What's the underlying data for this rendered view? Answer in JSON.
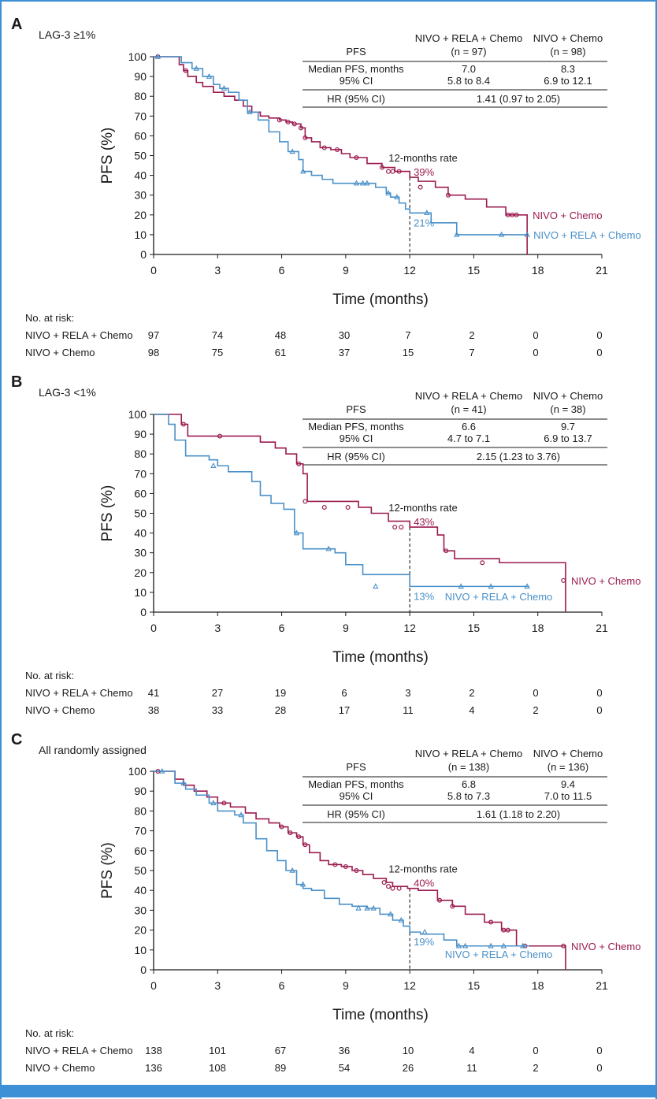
{
  "colors": {
    "red_arm": "#9b1a4f",
    "blue_arm": "#4a90c8",
    "frame": "#3d8fd6",
    "text": "#1a1a1a"
  },
  "chart_data": [
    {
      "type": "line",
      "panel": "A",
      "subtitle": "LAG-3 ≥1%",
      "xlabel": "Time (months)",
      "ylabel": "PFS (%)",
      "xlim": [
        0,
        21
      ],
      "ylim": [
        0,
        100
      ],
      "xticks": [
        "0",
        "3",
        "6",
        "9",
        "12",
        "15",
        "18",
        "21"
      ],
      "yticks": [
        "0",
        "10",
        "20",
        "30",
        "40",
        "50",
        "60",
        "70",
        "80",
        "90",
        "100"
      ],
      "annotation": "12-months rate",
      "rate_red": "39%",
      "rate_blue": "21%",
      "table": {
        "header": "PFS",
        "arm1_name": "NIVO + RELA + Chemo",
        "arm1_n": "(n = 97)",
        "arm2_name": "NIVO + Chemo",
        "arm2_n": "(n = 98)",
        "row1_label": "Median PFS, months",
        "row1_arm1": "7.0",
        "row1_arm2": "8.3",
        "row2_label": "95% CI",
        "row2_arm1": "5.8 to 8.4",
        "row2_arm2": "6.9 to 12.1",
        "hr_label": "HR (95% CI)",
        "hr_value": "1.41 (0.97 to 2.05)"
      },
      "risk": {
        "title": "No. at risk:",
        "arm1_label": "NIVO + RELA + Chemo",
        "arm1_values": [
          "97",
          "74",
          "48",
          "30",
          "7",
          "2",
          "0",
          "0"
        ],
        "arm2_label": "NIVO + Chemo",
        "arm2_values": [
          "98",
          "75",
          "61",
          "37",
          "15",
          "7",
          "0",
          "0"
        ]
      },
      "series": [
        {
          "name": "NIVO + Chemo",
          "label": "NIVO + Chemo",
          "color": "#9b1a4f",
          "x": [
            0,
            1.2,
            1.4,
            1.6,
            2.0,
            2.3,
            2.8,
            3.3,
            3.8,
            4.2,
            4.6,
            5.0,
            5.4,
            5.9,
            6.2,
            6.5,
            6.9,
            7.1,
            7.4,
            7.8,
            8.3,
            8.8,
            9.2,
            9.6,
            10.0,
            10.7,
            11.0,
            11.3,
            11.7,
            12.0,
            12.4,
            13.2,
            13.6,
            13.8,
            14.6,
            15.6,
            16.5,
            17.5,
            17.5
          ],
          "y": [
            100,
            96,
            93,
            90,
            87,
            85,
            82,
            80,
            78,
            75,
            72,
            70,
            69,
            68,
            67,
            66,
            64,
            59,
            57,
            54,
            53,
            51,
            49,
            49,
            46,
            44,
            44,
            42,
            42,
            39,
            37,
            34,
            34,
            30,
            28,
            24,
            20,
            20,
            0
          ],
          "censor_x": [
            0.2,
            1.5,
            5.9,
            6.3,
            6.6,
            6.9,
            7.1,
            8.0,
            8.6,
            9.5,
            10.7,
            11.0,
            11.2,
            11.5,
            12.5,
            13.8,
            16.6,
            16.8,
            17.0
          ],
          "censor_y": [
            100,
            93,
            68,
            67,
            66,
            64,
            59,
            54,
            53,
            49,
            44,
            42,
            42,
            42,
            34,
            30,
            20,
            20,
            20
          ]
        },
        {
          "name": "NIVO + RELA + Chemo",
          "label": "NIVO + RELA + Chemo",
          "color": "#4a90c8",
          "x": [
            0,
            1.3,
            1.8,
            2.3,
            2.8,
            3.1,
            3.5,
            4.0,
            4.4,
            4.9,
            5.4,
            5.9,
            6.3,
            6.8,
            7.0,
            7.4,
            7.9,
            8.4,
            8.9,
            9.4,
            10.4,
            10.9,
            11.1,
            11.5,
            11.8,
            12.0,
            12.2,
            13.0,
            14.2,
            15.0,
            16.0,
            17.5
          ],
          "y": [
            100,
            97,
            94,
            90,
            86,
            84,
            82,
            78,
            72,
            68,
            62,
            57,
            52,
            48,
            42,
            40,
            38,
            36,
            36,
            36,
            34,
            31,
            29,
            26,
            23,
            21,
            21,
            16,
            10,
            10,
            10,
            10
          ],
          "censor_x": [
            0.2,
            2.0,
            2.6,
            3.3,
            4.5,
            6.5,
            7.0,
            9.5,
            9.8,
            10.0,
            11.0,
            11.4,
            12.8,
            14.2,
            16.3,
            17.5
          ],
          "censor_y": [
            100,
            94,
            90,
            84,
            72,
            52,
            42,
            36,
            36,
            36,
            31,
            29,
            21,
            10,
            10,
            10
          ]
        }
      ]
    },
    {
      "type": "line",
      "panel": "B",
      "subtitle": "LAG-3 <1%",
      "xlabel": "Time (months)",
      "ylabel": "PFS (%)",
      "xlim": [
        0,
        21
      ],
      "ylim": [
        0,
        100
      ],
      "xticks": [
        "0",
        "3",
        "6",
        "9",
        "12",
        "15",
        "18",
        "21"
      ],
      "yticks": [
        "0",
        "10",
        "20",
        "30",
        "40",
        "50",
        "60",
        "70",
        "80",
        "90",
        "100"
      ],
      "annotation": "12-months rate",
      "rate_red": "43%",
      "rate_blue": "13%",
      "table": {
        "header": "PFS",
        "arm1_name": "NIVO + RELA + Chemo",
        "arm1_n": "(n = 41)",
        "arm2_name": "NIVO + Chemo",
        "arm2_n": "(n = 38)",
        "row1_label": "Median PFS, months",
        "row1_arm1": "6.6",
        "row1_arm2": "9.7",
        "row2_label": "95% CI",
        "row2_arm1": "4.7 to 7.1",
        "row2_arm2": "6.9 to 13.7",
        "hr_label": "HR (95% CI)",
        "hr_value": "2.15 (1.23 to 3.76)"
      },
      "risk": {
        "title": "No. at risk:",
        "arm1_label": "NIVO + RELA + Chemo",
        "arm1_values": [
          "41",
          "27",
          "19",
          "6",
          "3",
          "2",
          "0",
          "0"
        ],
        "arm2_label": "NIVO + Chemo",
        "arm2_values": [
          "38",
          "33",
          "28",
          "17",
          "11",
          "4",
          "2",
          "0"
        ]
      },
      "series": [
        {
          "name": "NIVO + Chemo",
          "label": "NIVO + Chemo",
          "color": "#9b1a4f",
          "x": [
            0,
            1.3,
            1.6,
            4.0,
            5.0,
            5.7,
            6.2,
            6.7,
            7.0,
            7.2,
            9.6,
            10.2,
            11.0,
            12.0,
            13.3,
            13.6,
            14.1,
            16.2,
            19.3,
            19.3
          ],
          "y": [
            100,
            95,
            89,
            89,
            86,
            83,
            80,
            75,
            70,
            56,
            53,
            50,
            46,
            43,
            39,
            31,
            27,
            25,
            16,
            0
          ],
          "censor_x": [
            1.4,
            3.1,
            6.8,
            7.1,
            8.0,
            9.1,
            11.3,
            11.6,
            13.7,
            15.4,
            19.2
          ],
          "censor_y": [
            95,
            89,
            75,
            56,
            53,
            53,
            43,
            43,
            31,
            25,
            16
          ],
          "label_y": 16
        },
        {
          "name": "NIVO + RELA + Chemo",
          "label": "NIVO + RELA + Chemo",
          "color": "#4a90c8",
          "x": [
            0,
            0.7,
            1.0,
            1.5,
            2.6,
            3.0,
            3.5,
            4.6,
            5.0,
            5.5,
            6.1,
            6.6,
            7.0,
            8.0,
            8.5,
            9.0,
            9.8,
            12.0,
            17.6
          ],
          "y": [
            100,
            95,
            87,
            79,
            77,
            74,
            71,
            66,
            59,
            55,
            52,
            40,
            32,
            32,
            30,
            24,
            19,
            13,
            13
          ],
          "censor_x": [
            2.8,
            6.7,
            8.2,
            10.4,
            14.4,
            15.8,
            17.5
          ],
          "censor_y": [
            74,
            40,
            32,
            13,
            13,
            13,
            13
          ]
        }
      ]
    },
    {
      "type": "line",
      "panel": "C",
      "subtitle": "All randomly assigned",
      "xlabel": "Time (months)",
      "ylabel": "PFS (%)",
      "xlim": [
        0,
        21
      ],
      "ylim": [
        0,
        100
      ],
      "xticks": [
        "0",
        "3",
        "6",
        "9",
        "12",
        "15",
        "18",
        "21"
      ],
      "yticks": [
        "0",
        "10",
        "20",
        "30",
        "40",
        "50",
        "60",
        "70",
        "80",
        "90",
        "100"
      ],
      "annotation": "12-months rate",
      "rate_red": "40%",
      "rate_blue": "19%",
      "table": {
        "header": "PFS",
        "arm1_name": "NIVO + RELA + Chemo",
        "arm1_n": "(n = 138)",
        "arm2_name": "NIVO + Chemo",
        "arm2_n": "(n = 136)",
        "row1_label": "Median PFS, months",
        "row1_arm1": "6.8",
        "row1_arm2": "9.4",
        "row2_label": "95% CI",
        "row2_arm1": "5.8 to 7.3",
        "row2_arm2": "7.0 to 11.5",
        "hr_label": "HR (95% CI)",
        "hr_value": "1.61 (1.18 to 2.20)"
      },
      "risk": {
        "title": "No. at risk:",
        "arm1_label": "NIVO + RELA + Chemo",
        "arm1_values": [
          "138",
          "101",
          "67",
          "36",
          "10",
          "4",
          "0",
          "0"
        ],
        "arm2_label": "NIVO + Chemo",
        "arm2_values": [
          "136",
          "108",
          "89",
          "54",
          "26",
          "11",
          "2",
          "0"
        ]
      },
      "series": [
        {
          "name": "NIVO + Chemo",
          "label": "NIVO + Chemo",
          "color": "#9b1a4f",
          "x": [
            0,
            1.0,
            1.4,
            1.9,
            2.5,
            3.0,
            3.6,
            4.3,
            4.8,
            5.4,
            5.9,
            6.3,
            6.7,
            7.0,
            7.3,
            7.8,
            8.2,
            8.8,
            9.3,
            9.8,
            10.3,
            10.9,
            11.2,
            11.9,
            12.4,
            13.3,
            13.6,
            14.0,
            14.6,
            15.5,
            16.3,
            17.0,
            19.3,
            19.3
          ],
          "y": [
            100,
            96,
            93,
            90,
            87,
            84,
            82,
            79,
            76,
            74,
            72,
            69,
            67,
            63,
            59,
            55,
            53,
            52,
            50,
            48,
            46,
            44,
            42,
            41,
            40,
            35,
            35,
            32,
            28,
            24,
            20,
            12,
            12,
            0
          ],
          "censor_x": [
            0.2,
            3.3,
            6.0,
            6.4,
            6.8,
            7.1,
            8.5,
            9.0,
            9.5,
            10.8,
            11.0,
            11.2,
            11.5,
            13.4,
            14.0,
            15.8,
            16.4,
            16.6,
            17.4,
            19.2
          ],
          "censor_y": [
            100,
            84,
            72,
            69,
            67,
            63,
            53,
            52,
            50,
            44,
            42,
            41,
            41,
            35,
            32,
            24,
            20,
            20,
            12,
            12
          ],
          "label_y": 12
        },
        {
          "name": "NIVO + RELA + Chemo",
          "label": "NIVO + RELA + Chemo",
          "color": "#4a90c8",
          "x": [
            0,
            1.0,
            1.5,
            2.0,
            2.6,
            3.0,
            3.8,
            4.2,
            4.8,
            5.3,
            5.8,
            6.2,
            6.7,
            7.0,
            7.4,
            8.0,
            8.7,
            9.3,
            10.0,
            10.6,
            11.2,
            11.7,
            12.0,
            12.5,
            13.6,
            14.2,
            16.5,
            17.6
          ],
          "y": [
            100,
            94,
            91,
            88,
            84,
            80,
            78,
            74,
            66,
            60,
            55,
            50,
            43,
            41,
            40,
            36,
            33,
            32,
            31,
            28,
            25,
            22,
            19,
            18,
            15,
            12,
            12,
            12
          ],
          "censor_x": [
            0.4,
            1.4,
            2.8,
            4.1,
            6.5,
            7.0,
            9.6,
            10.0,
            10.3,
            11.1,
            11.6,
            12.7,
            14.3,
            14.6,
            15.8,
            16.4,
            17.3
          ],
          "censor_y": [
            100,
            94,
            84,
            78,
            50,
            43,
            31,
            31,
            31,
            28,
            25,
            19,
            12,
            12,
            12,
            12,
            12
          ],
          "label_y": 8
        }
      ]
    }
  ]
}
